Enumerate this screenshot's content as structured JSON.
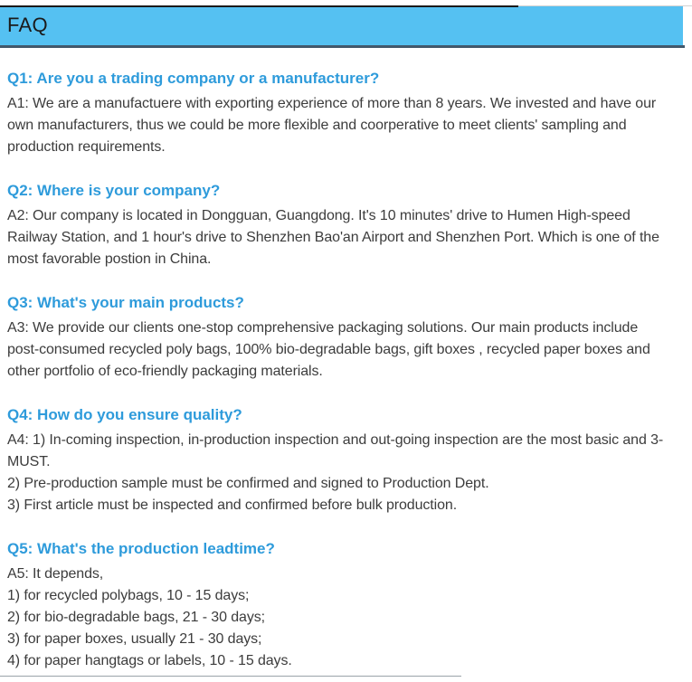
{
  "header": {
    "title": "FAQ"
  },
  "colors": {
    "header_bg": "#55C1F2",
    "header_border": "#42586B",
    "top_line": "#1A1A1A",
    "question_text": "#2E9BDB",
    "answer_text": "#3C3C3C"
  },
  "faq": {
    "items": [
      {
        "question": "Q1: Are you a trading company or a manufacturer?",
        "answer_lines": [
          "A1: We are a manufactuere with exporting experience of more than 8 years. We invested and have our own manufacturers, thus we could be more flexible and coorperative to meet clients' sampling and production requirements."
        ]
      },
      {
        "question": "Q2: Where is your company?",
        "answer_lines": [
          "A2: Our company is located in Dongguan, Guangdong. It's 10 minutes' drive to Humen High-speed Railway Station, and 1 hour's drive to Shenzhen Bao'an Airport and Shenzhen Port. Which is one of the most favorable postion in China."
        ]
      },
      {
        "question": "Q3: What's your main products?",
        "answer_lines": [
          "A3: We provide our clients one-stop comprehensive packaging solutions. Our main products include post-consumed recycled poly bags, 100% bio-degradable bags, gift boxes , recycled paper boxes and other portfolio of eco-friendly packaging materials."
        ]
      },
      {
        "question": "Q4: How do you ensure quality?",
        "answer_lines": [
          "A4: 1) In-coming inspection, in-production inspection and out-going inspection are the most basic and 3-MUST.",
          "2) Pre-production sample must be confirmed and signed to Production Dept.",
          "3) First article must be inspected and confirmed before bulk production."
        ]
      },
      {
        "question": "Q5: What's the production leadtime?",
        "answer_lines": [
          "A5: It depends,",
          "1) for recycled polybags, 10 - 15 days;",
          "2) for bio-degradable bags, 21 - 30 days;",
          "3) for paper boxes, usually 21 - 30 days;",
          "4) for paper hangtags or labels, 10 - 15 days."
        ]
      }
    ]
  }
}
